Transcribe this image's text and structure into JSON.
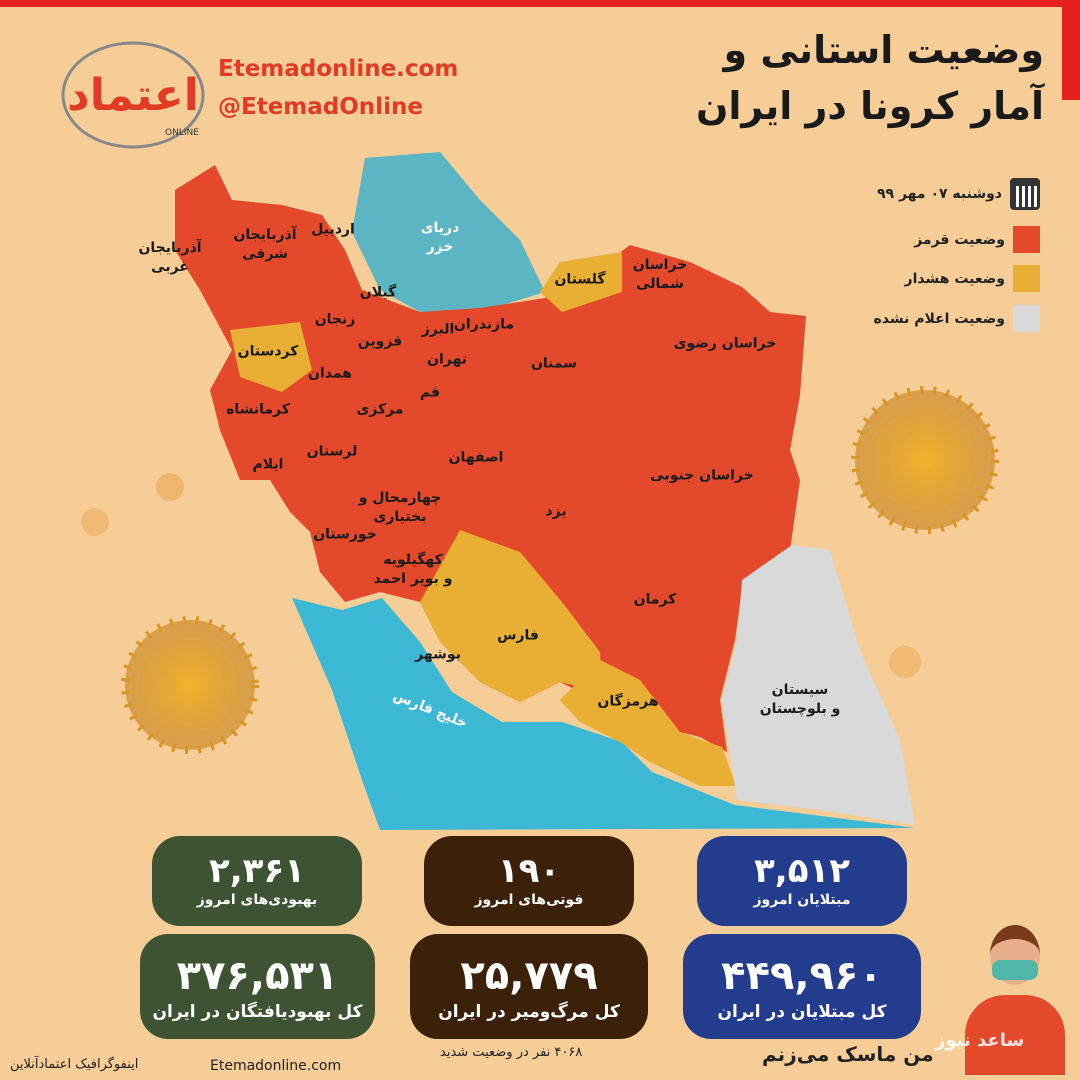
{
  "header": {
    "title_line1": "وضعیت استانی و",
    "title_line2": "آمار کرونا در ایران",
    "website": "Etemadonline.com",
    "handle": "@EtemadOnline",
    "logo_text": "اعتماد ONLINE"
  },
  "legend": {
    "date": "دوشنبه ۰۷ مهر ۹۹",
    "items": [
      {
        "label": "وضعیت قرمز",
        "color": "#e4492b"
      },
      {
        "label": "وضعیت هشدار",
        "color": "#e9ae34"
      },
      {
        "label": "وضعیت اعلام نشده",
        "color": "#d9d9d9"
      }
    ]
  },
  "map": {
    "seas": [
      "دریای\nخزر",
      "خلیج فارس"
    ],
    "provinces": [
      {
        "name": "آذربایجان\nغربی",
        "status": "red"
      },
      {
        "name": "آذربایجان\nشرقی",
        "status": "red"
      },
      {
        "name": "اردبیل",
        "status": "red"
      },
      {
        "name": "گیلان",
        "status": "red"
      },
      {
        "name": "زنجان",
        "status": "red"
      },
      {
        "name": "کردستان",
        "status": "warning"
      },
      {
        "name": "قزوین",
        "status": "red"
      },
      {
        "name": "البرز",
        "status": "red"
      },
      {
        "name": "مازندران",
        "status": "red"
      },
      {
        "name": "تهران",
        "status": "red"
      },
      {
        "name": "همدان",
        "status": "red"
      },
      {
        "name": "قم",
        "status": "red"
      },
      {
        "name": "مرکزی",
        "status": "red"
      },
      {
        "name": "کرمانشاه",
        "status": "red"
      },
      {
        "name": "لرستان",
        "status": "red"
      },
      {
        "name": "ایلام",
        "status": "red"
      },
      {
        "name": "اصفهان",
        "status": "red"
      },
      {
        "name": "چهارمحال و\nبختیاری",
        "status": "red"
      },
      {
        "name": "خوزستان",
        "status": "red"
      },
      {
        "name": "کهگیلویه\nو بویر احمد",
        "status": "red"
      },
      {
        "name": "بوشهر",
        "status": "red"
      },
      {
        "name": "فارس",
        "status": "warning"
      },
      {
        "name": "هرمزگان",
        "status": "warning"
      },
      {
        "name": "کرمان",
        "status": "red"
      },
      {
        "name": "یزد",
        "status": "red"
      },
      {
        "name": "سمنان",
        "status": "red"
      },
      {
        "name": "گلستان",
        "status": "warning"
      },
      {
        "name": "خراسان\nشمالی",
        "status": "red"
      },
      {
        "name": "خراسان رضوی",
        "status": "red"
      },
      {
        "name": "خراسان جنوبی",
        "status": "red"
      },
      {
        "name": "سیستان\nو بلوچستان",
        "status": "not-announced"
      }
    ]
  },
  "stats": {
    "recovered_today": {
      "value": "۲,۳۶۱",
      "label": "بهبودی‌های امروز"
    },
    "deaths_today": {
      "value": "۱۹۰",
      "label": "فوتی‌های امروز"
    },
    "cases_today": {
      "value": "۳,۵۱۲",
      "label": "مبتلایان امروز"
    },
    "recovered_total": {
      "value": "۳۷۶,۵۳۱",
      "label": "کل بهبودیافتگان در ایران"
    },
    "deaths_total": {
      "value": "۲۵,۷۷۹",
      "label": "کل مرگ‌ومیر در ایران"
    },
    "cases_total": {
      "value": "۴۴۹,۹۶۰",
      "label": "کل مبتلایان در ایران"
    },
    "critical": "۴۰۶۸ نفر در وضعیت شدید"
  },
  "footer": {
    "credit": "اینفوگرافیک اعتمادآنلاین",
    "website": "Etemadonline.com",
    "mask_slogan": "من ماسک می‌زنم",
    "watermark": "ساعد نیوز"
  }
}
